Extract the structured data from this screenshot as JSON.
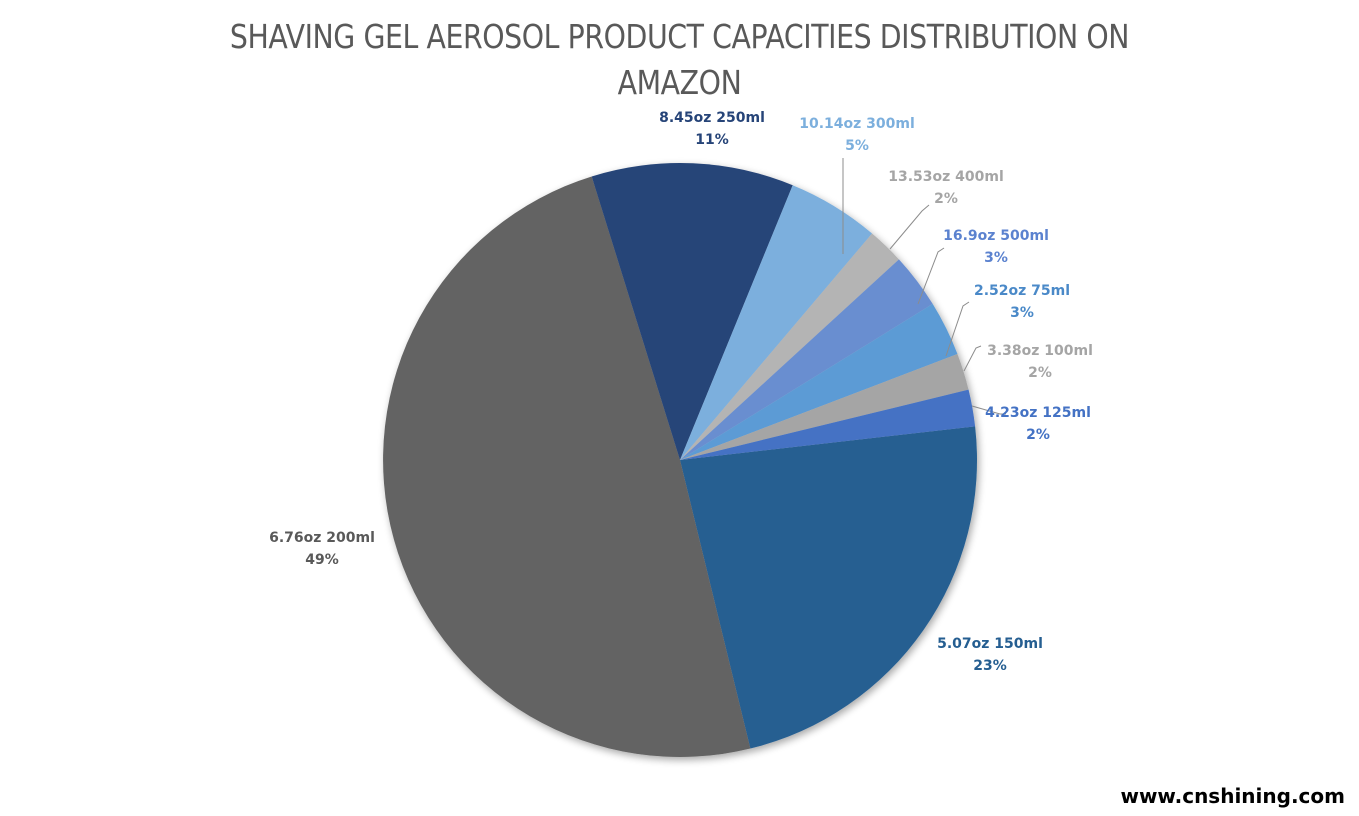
{
  "chart_data": {
    "type": "pie",
    "title": "SHAVING GEL AEROSOL PRODUCT CAPACITIES DISTRIBUTION ON AMAZON",
    "title_lines": [
      "SHAVING GEL AEROSOL PRODUCT CAPACITIES DISTRIBUTION ON",
      "AMAZON"
    ],
    "start_angle_deg": -6.5,
    "direction": "clockwise",
    "slices": [
      {
        "label": "5.07oz 150ml",
        "value": 23,
        "pct_label": "23%",
        "color": "#255E91",
        "label_color": "#255E91"
      },
      {
        "label": "6.76oz 200ml",
        "value": 49,
        "pct_label": "49%",
        "color": "#636363",
        "label_color": "#595959"
      },
      {
        "label": "8.45oz 250ml",
        "value": 11,
        "pct_label": "11%",
        "color": "#264478",
        "label_color": "#264478"
      },
      {
        "label": "10.14oz 300ml",
        "value": 5,
        "pct_label": "5%",
        "color": "#7CAFDD",
        "label_color": "#7CAFDD"
      },
      {
        "label": "13.53oz 400ml",
        "value": 2,
        "pct_label": "2%",
        "color": "#B4B4B4",
        "label_color": "#A5A5A5"
      },
      {
        "label": "16.9oz 500ml",
        "value": 3,
        "pct_label": "3%",
        "color": "#698ED0",
        "label_color": "#5B82CF"
      },
      {
        "label": "2.52oz 75ml",
        "value": 3,
        "pct_label": "3%",
        "color": "#5B9BD5",
        "label_color": "#4A89C8"
      },
      {
        "label": "3.38oz 100ml",
        "value": 2,
        "pct_label": "2%",
        "color": "#A5A5A5",
        "label_color": "#A5A5A5"
      },
      {
        "label": "4.23oz 125ml",
        "value": 2,
        "pct_label": "2%",
        "color": "#4472C4",
        "label_color": "#4472C4"
      }
    ]
  },
  "watermark": "www.cnshining.com"
}
